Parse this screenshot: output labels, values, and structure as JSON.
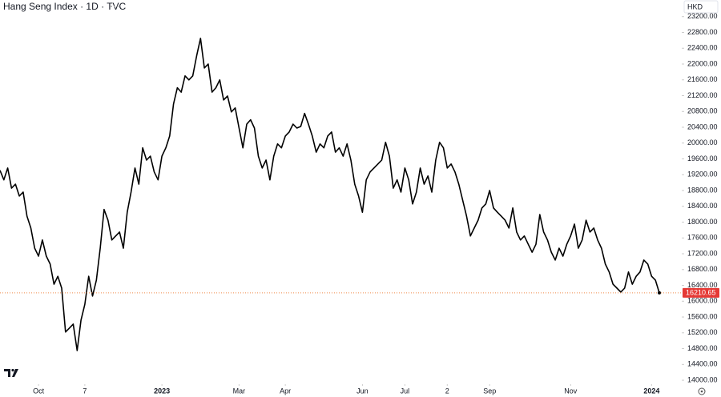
{
  "chart_data": {
    "type": "line",
    "title": "Hang Seng Index · 1D · TVC",
    "currency": "HKD",
    "color": "#000000",
    "price_line_color": "#f08a4b",
    "values": [
      19310,
      19070,
      19370,
      18860,
      18960,
      18660,
      18760,
      18150,
      17850,
      17340,
      17140,
      17550,
      17140,
      16940,
      16430,
      16630,
      16330,
      15220,
      15320,
      15420,
      14750,
      15520,
      15920,
      16630,
      16130,
      16530,
      17340,
      18320,
      18050,
      17550,
      17650,
      17750,
      17340,
      18250,
      18760,
      19370,
      18960,
      19880,
      19570,
      19670,
      19270,
      19070,
      19670,
      19880,
      20180,
      20990,
      21400,
      21290,
      21700,
      21600,
      21700,
      22210,
      22650,
      21900,
      22000,
      21290,
      21400,
      21600,
      21090,
      21190,
      20790,
      20890,
      20380,
      19880,
      20480,
      20590,
      20380,
      19670,
      19370,
      19570,
      19070,
      19670,
      19980,
      19880,
      20180,
      20280,
      20480,
      20380,
      20420,
      20750,
      20480,
      20180,
      19770,
      19980,
      19880,
      20180,
      20280,
      19770,
      19880,
      19670,
      19980,
      19570,
      18960,
      18660,
      18250,
      19070,
      19270,
      19370,
      19470,
      19570,
      20020,
      19670,
      18860,
      19070,
      18760,
      19370,
      19070,
      18460,
      18760,
      19370,
      18960,
      19170,
      18760,
      19570,
      20020,
      19880,
      19370,
      19470,
      19270,
      18960,
      18560,
      18150,
      17650,
      17850,
      18050,
      18360,
      18460,
      18800,
      18360,
      18250,
      18150,
      18050,
      17850,
      18360,
      17750,
      17550,
      17650,
      17440,
      17240,
      17440,
      18190,
      17750,
      17550,
      17240,
      17040,
      17340,
      17140,
      17440,
      17650,
      17950,
      17340,
      17550,
      18050,
      17750,
      17850,
      17550,
      17340,
      16940,
      16740,
      16430,
      16330,
      16230,
      16330,
      16740,
      16430,
      16630,
      16740,
      17040,
      16940,
      16630,
      16530,
      16210.65
    ],
    "xlim": [
      0,
      171
    ],
    "xticks": [
      {
        "value": 10,
        "label": "Oct"
      },
      {
        "value": 22,
        "label": "7"
      },
      {
        "value": 42,
        "label": "2023"
      },
      {
        "value": 62,
        "label": "Mar"
      },
      {
        "value": 74,
        "label": "Apr"
      },
      {
        "value": 94,
        "label": "Jun"
      },
      {
        "value": 105,
        "label": "Jul"
      },
      {
        "value": 116,
        "label": "2"
      },
      {
        "value": 127,
        "label": "Sep"
      },
      {
        "value": 148,
        "label": "Nov"
      },
      {
        "value": 169,
        "label": "2024"
      }
    ],
    "ylim": [
      13900,
      23620
    ],
    "yticks": [
      {
        "value": 14000,
        "label": "14000.00"
      },
      {
        "value": 14400,
        "label": "14400.00"
      },
      {
        "value": 14800,
        "label": "14800.00"
      },
      {
        "value": 15200,
        "label": "15200.00"
      },
      {
        "value": 15600,
        "label": "15600.00"
      },
      {
        "value": 16000,
        "label": "16000.00"
      },
      {
        "value": 16400,
        "label": "16400.00"
      },
      {
        "value": 16800,
        "label": "16800.00"
      },
      {
        "value": 17200,
        "label": "17200.00"
      },
      {
        "value": 17600,
        "label": "17600.00"
      },
      {
        "value": 18000,
        "label": "18000.00"
      },
      {
        "value": 18400,
        "label": "18400.00"
      },
      {
        "value": 18800,
        "label": "18800.00"
      },
      {
        "value": 19200,
        "label": "19200.00"
      },
      {
        "value": 19600,
        "label": "19600.00"
      },
      {
        "value": 20000,
        "label": "20000.00"
      },
      {
        "value": 20400,
        "label": "20400.00"
      },
      {
        "value": 20800,
        "label": "20800.00"
      },
      {
        "value": 21200,
        "label": "21200.00"
      },
      {
        "value": 21600,
        "label": "21600.00"
      },
      {
        "value": 22000,
        "label": "22000.00"
      },
      {
        "value": 22400,
        "label": "22400.00"
      },
      {
        "value": 22800,
        "label": "22800.00"
      },
      {
        "value": 23200,
        "label": "23200.00"
      }
    ]
  }
}
